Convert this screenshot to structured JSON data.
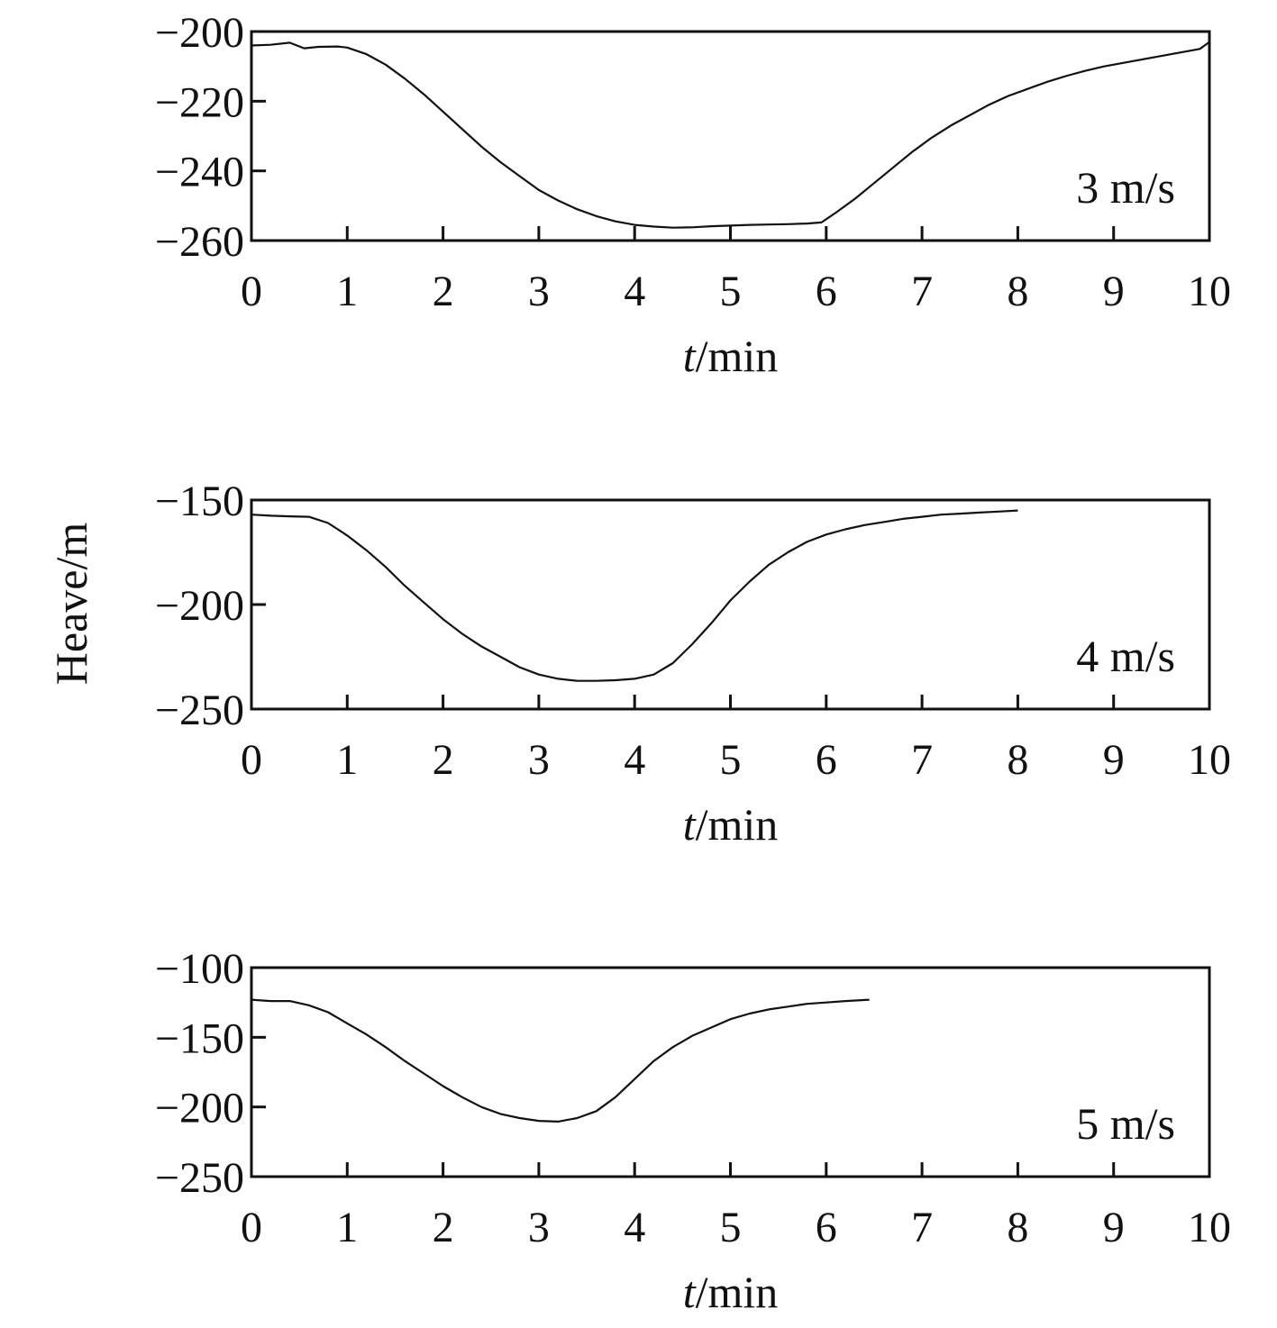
{
  "figure": {
    "ylabel": "Heave/m"
  },
  "chart_data": [
    {
      "type": "line",
      "annotation": "3 m/s",
      "xlabel_var": "t",
      "xlabel_unit": "/min",
      "xlim": [
        0,
        10
      ],
      "ylim": [
        -260,
        -200
      ],
      "x_ticks": [
        "0",
        "1",
        "2",
        "3",
        "4",
        "5",
        "6",
        "7",
        "8",
        "9",
        "10"
      ],
      "y_ticks": [
        "−200",
        "−220",
        "−240",
        "−260"
      ],
      "y_tick_values": [
        -200,
        -220,
        -240,
        -260
      ],
      "grid": false,
      "series": [
        {
          "x": [
            0,
            0.2,
            0.4,
            0.55,
            0.7,
            0.9,
            1.0,
            1.2,
            1.4,
            1.6,
            1.8,
            2.0,
            2.2,
            2.4,
            2.6,
            2.8,
            3.0,
            3.2,
            3.4,
            3.6,
            3.8,
            4.0,
            4.2,
            4.4,
            4.6,
            4.8,
            5.0,
            5.2,
            5.4,
            5.6,
            5.8,
            5.95,
            6.1,
            6.3,
            6.5,
            6.7,
            6.9,
            7.1,
            7.3,
            7.5,
            7.7,
            7.9,
            8.1,
            8.3,
            8.5,
            8.7,
            8.9,
            9.1,
            9.3,
            9.5,
            9.7,
            9.9,
            10.0
          ],
          "y": [
            -204,
            -203.8,
            -203.2,
            -204.8,
            -204.4,
            -204.3,
            -204.6,
            -206.5,
            -209.5,
            -213.5,
            -218,
            -223,
            -228,
            -233,
            -237.5,
            -241.5,
            -245.5,
            -248.5,
            -251,
            -253,
            -254.5,
            -255.5,
            -256,
            -256.3,
            -256.2,
            -255.9,
            -255.7,
            -255.5,
            -255.4,
            -255.3,
            -255.1,
            -254.8,
            -252,
            -248,
            -243.5,
            -239,
            -234.5,
            -230.5,
            -227,
            -224,
            -221,
            -218.5,
            -216.5,
            -214.5,
            -212.8,
            -211.3,
            -210,
            -209,
            -208,
            -207,
            -206,
            -205,
            -203
          ]
        }
      ]
    },
    {
      "type": "line",
      "annotation": "4 m/s",
      "xlabel_var": "t",
      "xlabel_unit": "/min",
      "xlim": [
        0,
        10
      ],
      "ylim": [
        -250,
        -150
      ],
      "x_ticks": [
        "0",
        "1",
        "2",
        "3",
        "4",
        "5",
        "6",
        "7",
        "8",
        "9",
        "10"
      ],
      "y_ticks": [
        "−150",
        "−200",
        "−250"
      ],
      "y_tick_values": [
        -150,
        -200,
        -250
      ],
      "grid": false,
      "series": [
        {
          "x": [
            0,
            0.2,
            0.4,
            0.6,
            0.8,
            1.0,
            1.2,
            1.4,
            1.6,
            1.8,
            2.0,
            2.2,
            2.4,
            2.6,
            2.8,
            3.0,
            3.2,
            3.4,
            3.6,
            3.8,
            4.0,
            4.2,
            4.4,
            4.6,
            4.8,
            5.0,
            5.2,
            5.4,
            5.6,
            5.8,
            6.0,
            6.2,
            6.4,
            6.6,
            6.8,
            7.0,
            7.2,
            7.4,
            7.6,
            7.8,
            8.0
          ],
          "y": [
            -157,
            -157.5,
            -157.8,
            -158,
            -161,
            -167,
            -174,
            -182,
            -191,
            -199,
            -207,
            -214,
            -220,
            -225,
            -230,
            -233.5,
            -235.5,
            -236.5,
            -236.5,
            -236.2,
            -235.5,
            -233.5,
            -228,
            -219,
            -209,
            -198,
            -189,
            -181,
            -175,
            -170,
            -166.5,
            -164,
            -162,
            -160.5,
            -159,
            -158,
            -157,
            -156.5,
            -156,
            -155.5,
            -155
          ]
        }
      ]
    },
    {
      "type": "line",
      "annotation": "5 m/s",
      "xlabel_var": "t",
      "xlabel_unit": "/min",
      "xlim": [
        0,
        10
      ],
      "ylim": [
        -250,
        -100
      ],
      "x_ticks": [
        "0",
        "1",
        "2",
        "3",
        "4",
        "5",
        "6",
        "7",
        "8",
        "9",
        "10"
      ],
      "y_ticks": [
        "−100",
        "−150",
        "−200",
        "−250"
      ],
      "y_tick_values": [
        -100,
        -150,
        -200,
        -250
      ],
      "grid": false,
      "series": [
        {
          "x": [
            0,
            0.2,
            0.4,
            0.6,
            0.8,
            1.0,
            1.2,
            1.4,
            1.6,
            1.8,
            2.0,
            2.2,
            2.4,
            2.6,
            2.8,
            3.0,
            3.2,
            3.4,
            3.6,
            3.8,
            4.0,
            4.2,
            4.4,
            4.6,
            4.8,
            5.0,
            5.2,
            5.4,
            5.6,
            5.8,
            6.0,
            6.2,
            6.45
          ],
          "y": [
            -123,
            -124,
            -124,
            -127,
            -132,
            -140,
            -148,
            -157,
            -167,
            -176,
            -185,
            -193,
            -200,
            -205,
            -208,
            -210,
            -210.5,
            -208,
            -203,
            -193,
            -180,
            -167,
            -157,
            -149,
            -143,
            -137,
            -133,
            -130,
            -128,
            -126,
            -125,
            -124,
            -123
          ]
        }
      ]
    }
  ]
}
